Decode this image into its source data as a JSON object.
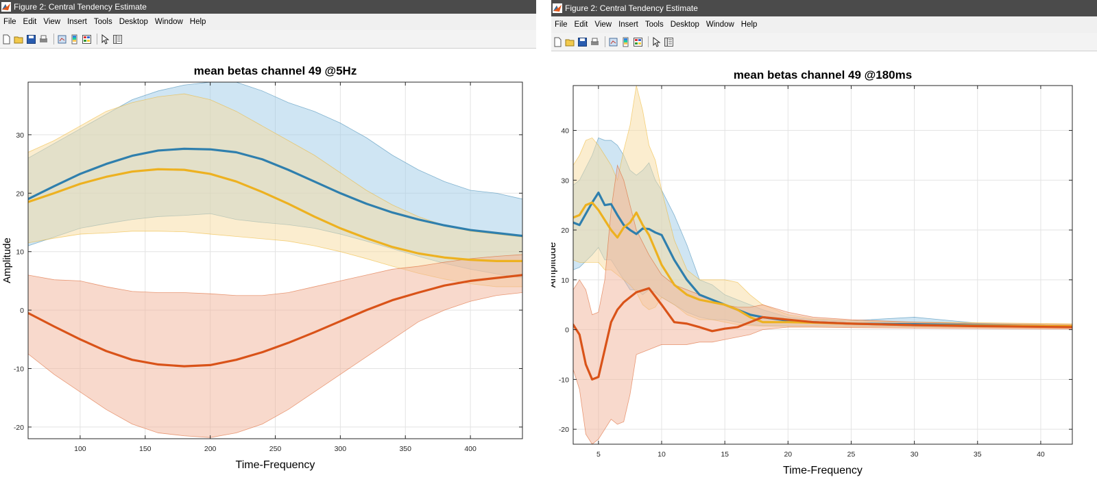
{
  "window": {
    "title": "Figure 2: Central Tendency Estimate",
    "menus": [
      "File",
      "Edit",
      "View",
      "Insert",
      "Tools",
      "Desktop",
      "Window",
      "Help"
    ],
    "toolbar_icons": [
      "new-figure-icon",
      "open-file-icon",
      "save-icon",
      "print-icon",
      "separator",
      "link-plot-icon",
      "insert-colorbar-icon",
      "separator",
      "edit-plot-icon",
      "property-inspector-icon"
    ]
  },
  "colors": {
    "blue": "#2f7fad",
    "yellow": "#edb120",
    "red": "#d95319",
    "blue_fill": "#9fcbe8",
    "yellow_fill": "#f7dca0",
    "red_fill": "#f2b49a"
  },
  "chart_data": [
    {
      "type": "line",
      "title": "mean betas channel 49 @5Hz",
      "xlabel": "Time-Frequency",
      "ylabel": "Amplitude",
      "xlim": [
        60,
        440
      ],
      "ylim": [
        -22,
        39
      ],
      "xticks": [
        100,
        150,
        200,
        250,
        300,
        350,
        400
      ],
      "yticks": [
        -20,
        -10,
        0,
        10,
        20,
        30
      ],
      "grid": true,
      "series": [
        {
          "name": "blue",
          "x": [
            60,
            80,
            100,
            120,
            140,
            160,
            180,
            200,
            220,
            240,
            260,
            280,
            300,
            320,
            340,
            360,
            380,
            400,
            420,
            440
          ],
          "y": [
            19,
            21.2,
            23.3,
            25.0,
            26.4,
            27.3,
            27.6,
            27.5,
            27.0,
            25.8,
            24.0,
            22.0,
            20.0,
            18.2,
            16.7,
            15.5,
            14.5,
            13.7,
            13.2,
            12.7
          ],
          "upper": [
            26,
            28.5,
            31,
            33.5,
            36,
            37.5,
            38.5,
            39,
            39,
            37.5,
            35.5,
            34,
            32,
            29.5,
            26.5,
            24,
            22,
            20.5,
            20,
            19
          ],
          "lower": [
            11,
            12.5,
            14,
            14.8,
            15.5,
            16,
            16.2,
            16.5,
            15.5,
            15,
            14.6,
            14,
            13,
            11.8,
            10.5,
            9.2,
            8,
            7,
            6.2,
            5.5
          ]
        },
        {
          "name": "yellow",
          "x": [
            60,
            80,
            100,
            120,
            140,
            160,
            180,
            200,
            220,
            240,
            260,
            280,
            300,
            320,
            340,
            360,
            380,
            400,
            420,
            440
          ],
          "y": [
            18.5,
            20.0,
            21.6,
            22.8,
            23.7,
            24.1,
            24.0,
            23.3,
            22.0,
            20.2,
            18.2,
            16.0,
            14.0,
            12.3,
            10.8,
            9.7,
            9.0,
            8.6,
            8.4,
            8.4
          ],
          "upper": [
            27,
            29,
            31.5,
            34,
            35.5,
            36.5,
            37,
            36,
            34,
            31.5,
            29,
            26.5,
            23.5,
            20.5,
            18,
            16,
            14.5,
            13.5,
            13,
            12.5
          ],
          "lower": [
            11.5,
            12.3,
            13,
            13.2,
            13.5,
            13.5,
            13.4,
            13,
            12.6,
            12.2,
            11.8,
            11,
            10,
            8.8,
            7.5,
            6.3,
            5.3,
            4.5,
            4,
            4
          ]
        },
        {
          "name": "red",
          "x": [
            60,
            80,
            100,
            120,
            140,
            160,
            180,
            200,
            220,
            240,
            260,
            280,
            300,
            320,
            340,
            360,
            380,
            400,
            420,
            440
          ],
          "y": [
            -0.5,
            -2.8,
            -5.0,
            -7.0,
            -8.5,
            -9.3,
            -9.6,
            -9.4,
            -8.5,
            -7.2,
            -5.6,
            -3.8,
            -1.9,
            0,
            1.7,
            3.0,
            4.2,
            5.0,
            5.5,
            6.0
          ],
          "upper": [
            6,
            5.2,
            5,
            4,
            3.2,
            3,
            3,
            2.8,
            2.5,
            2.5,
            3,
            4,
            5,
            6,
            7,
            7.5,
            8.2,
            8.8,
            9.2,
            9.5
          ],
          "lower": [
            -7.5,
            -11,
            -14,
            -17,
            -19.5,
            -21,
            -21.5,
            -21.8,
            -21,
            -19.5,
            -17,
            -14,
            -11,
            -8,
            -5,
            -2,
            0,
            1.5,
            2.5,
            3
          ]
        }
      ]
    },
    {
      "type": "line",
      "title": "mean betas channel 49 @180ms",
      "xlabel": "Time-Frequency",
      "ylabel": "Amplitude",
      "xlim": [
        3,
        42.5
      ],
      "ylim": [
        -23,
        49
      ],
      "xticks": [
        5,
        10,
        15,
        20,
        25,
        30,
        35,
        40
      ],
      "yticks": [
        -20,
        -10,
        0,
        10,
        20,
        30,
        40
      ],
      "grid": true,
      "series": [
        {
          "name": "blue",
          "x": [
            3,
            3.5,
            4.5,
            5,
            5.5,
            6,
            6.5,
            7,
            7.5,
            8,
            8.5,
            9,
            9.5,
            10,
            11,
            12,
            13,
            14,
            15,
            16,
            17,
            18,
            20,
            22,
            25,
            30,
            35,
            42.5
          ],
          "y": [
            21.5,
            21,
            25.5,
            27.5,
            25,
            25.2,
            23,
            21,
            20,
            19.2,
            20.3,
            20.2,
            19.5,
            19,
            14,
            10,
            7,
            6,
            5,
            4,
            3,
            2.5,
            1.8,
            1.5,
            1.2,
            1.1,
            0.9,
            0.6
          ],
          "upper": [
            29,
            30,
            35,
            38.5,
            38,
            38,
            37,
            35,
            32,
            31,
            32,
            33.5,
            30,
            28,
            23,
            17,
            10,
            9,
            7,
            6,
            5,
            4,
            2.5,
            2,
            1.8,
            2.5,
            1.3,
            0.9
          ],
          "lower": [
            12,
            12.5,
            15,
            16.5,
            14,
            14,
            12,
            10,
            8,
            8,
            7,
            8,
            7.5,
            6.5,
            5,
            3.5,
            2.5,
            2,
            2,
            1.5,
            1,
            0.8,
            0.8,
            0.8,
            0.7,
            0.6,
            0.5,
            0.4
          ]
        },
        {
          "name": "yellow",
          "x": [
            3,
            3.5,
            4,
            4.5,
            5,
            5.5,
            6,
            6.5,
            7,
            7.5,
            8,
            8.5,
            9,
            9.5,
            10,
            11,
            12,
            13,
            14,
            15,
            16,
            17,
            18,
            20,
            22,
            25,
            30,
            35,
            42.5
          ],
          "y": [
            22.5,
            23,
            25,
            25.5,
            24,
            22,
            20,
            18.5,
            20.5,
            21.5,
            23.5,
            21,
            19,
            16,
            13,
            9,
            7,
            6,
            5.5,
            5,
            4,
            2.5,
            1.5,
            1.5,
            1.4,
            1.2,
            0.9,
            0.8,
            0.7
          ],
          "upper": [
            33,
            35,
            38,
            38.5,
            37,
            35,
            33,
            30,
            36,
            41,
            49,
            44,
            37,
            34,
            28,
            18,
            12,
            10,
            10,
            10,
            9.5,
            7,
            5,
            3,
            2.2,
            1.8,
            1.5,
            1.4,
            1.2
          ],
          "lower": [
            14,
            13.5,
            13.5,
            13.5,
            13.5,
            12,
            12,
            11,
            10,
            9,
            7.5,
            5,
            4,
            4.5,
            6.5,
            5,
            3,
            2,
            2,
            1.5,
            1,
            0.8,
            0.7,
            0.6,
            0.6,
            0.6,
            0.5,
            0.4,
            0.3
          ]
        },
        {
          "name": "red",
          "x": [
            3,
            3.5,
            4,
            4.5,
            5,
            5.5,
            6,
            6.5,
            7,
            7.5,
            8,
            9,
            10,
            11,
            12,
            13,
            14,
            15,
            16,
            17,
            18,
            20,
            22,
            25,
            30,
            35,
            42.5
          ],
          "y": [
            1,
            -1,
            -7,
            -10,
            -9.5,
            -4,
            1.5,
            4,
            5.5,
            6.5,
            7.5,
            8.3,
            5,
            1.5,
            1.2,
            0.5,
            -0.3,
            0.2,
            0.5,
            1.5,
            2.5,
            2,
            1.5,
            1.2,
            0.9,
            0.7,
            0.5
          ],
          "upper": [
            8,
            10,
            8,
            3,
            3.5,
            10,
            24,
            33,
            30,
            25,
            20,
            15,
            11,
            9,
            8,
            7,
            6,
            5,
            4.5,
            4.5,
            5,
            3.5,
            2.5,
            2,
            1.5,
            1.2,
            1.0
          ],
          "lower": [
            -8,
            -12,
            -21,
            -23,
            -22,
            -20,
            -18,
            -19,
            -18.5,
            -13,
            -5,
            -4,
            -3,
            -3,
            -3,
            -2.5,
            -2.5,
            -2,
            -1.5,
            -1,
            0,
            0.5,
            0.5,
            0.4,
            0.3,
            0.2,
            0.1
          ]
        }
      ]
    }
  ]
}
